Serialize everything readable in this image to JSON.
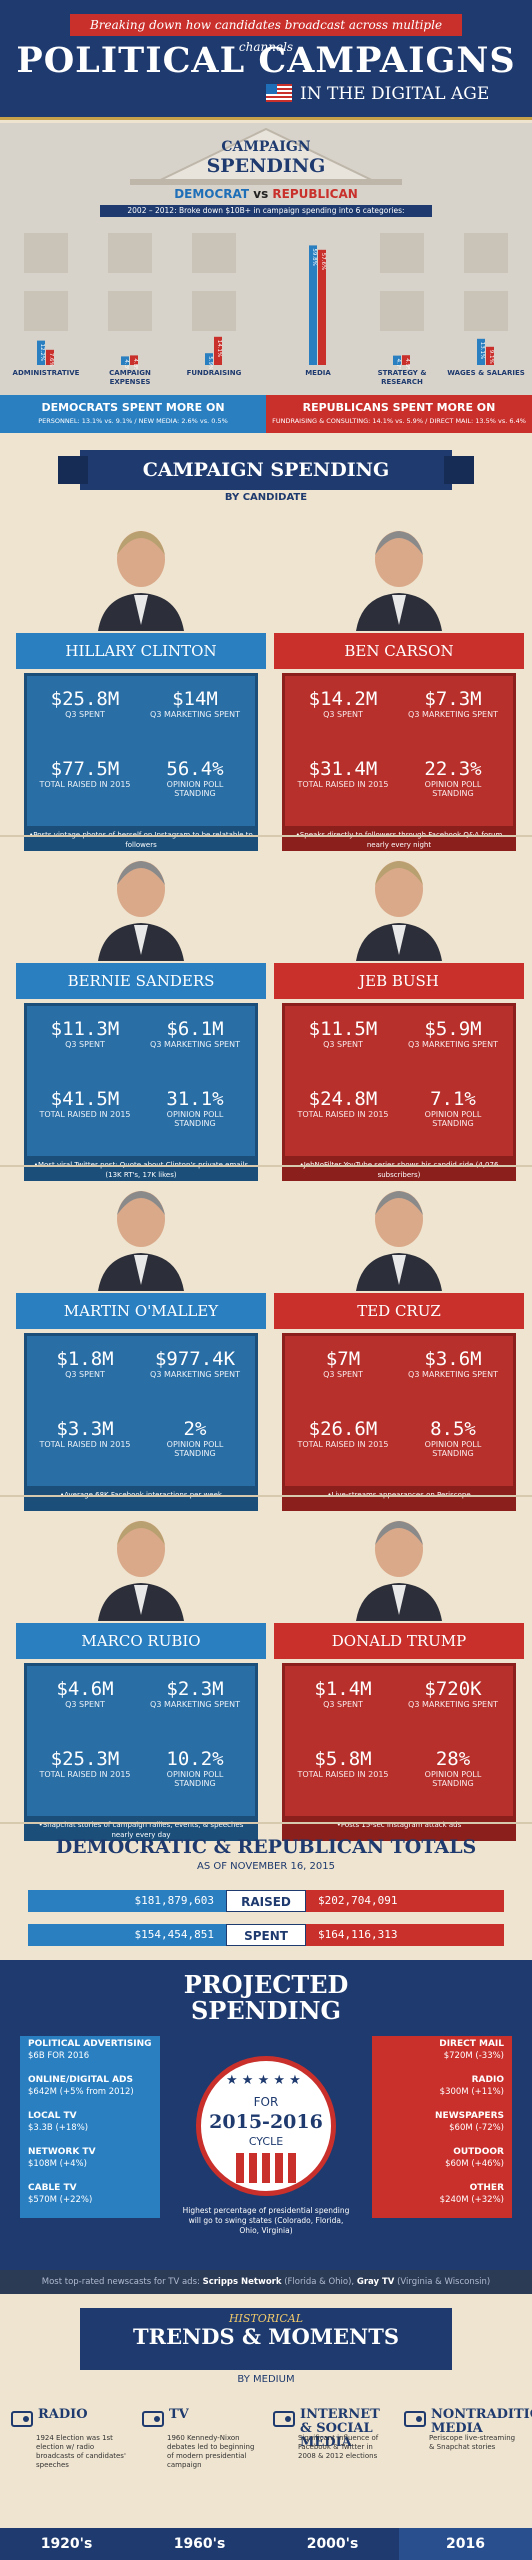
{
  "header": {
    "ribbon": "Breaking down how candidates broadcast across multiple channels",
    "title": "POLITICAL CAMPAIGNS",
    "subtitle": "IN THE DIGITAL AGE"
  },
  "campaign_spending": {
    "title_line1": "CAMPAIGN",
    "title_line2": "SPENDING",
    "democrat": "DEMOCRAT",
    "vs": "vs",
    "republican": "REPUBLICAN",
    "note": "2002 – 2012: Broke down $10B+ in campaign spending into 6 categories:",
    "chart_data": {
      "type": "bar",
      "categories": [
        "ADMINISTRATIVE",
        "CAMPAIGN EXPENSES",
        "FUNDRAISING",
        "MEDIA",
        "STRATEGY & RESEARCH",
        "WAGES & SALARIES"
      ],
      "series": [
        {
          "name": "DEMOCRAT",
          "values": [
            12.2,
            4.3,
            5.9,
            59.8,
            4.7,
            13.1
          ]
        },
        {
          "name": "REPUBLICAN",
          "values": [
            7.6,
            4.8,
            14.1,
            57.6,
            4.9,
            9.1
          ]
        }
      ],
      "labels_dem": [
        "12.2%",
        "4.3%",
        "5.9%",
        "59.8%",
        "4.7%",
        "13.1%"
      ],
      "labels_rep": [
        "7.6%",
        "4.8%",
        "14.1%",
        "57.6%",
        "4.9%",
        "9.1%"
      ]
    }
  },
  "spent_more": {
    "dem_head": "DEMOCRATS SPENT MORE ON",
    "dem_sub": "PERSONNEL: 13.1% vs. 9.1% / NEW MEDIA: 2.6% vs. 0.5%",
    "rep_head": "REPUBLICANS SPENT MORE ON",
    "rep_sub": "FUNDRAISING & CONSULTING: 14.1% vs. 5.9% / DIRECT MAIL: 13.5% vs. 6.4%"
  },
  "by_candidate": {
    "title": "CAMPAIGN SPENDING",
    "subtitle": "BY CANDIDATE"
  },
  "candidates": [
    {
      "name": "HILLARY CLINTON",
      "q3_spent": "$25.8M",
      "marketing": "$14M",
      "raised": "$77.5M",
      "poll": "56.4%",
      "note": "•Posts vintage photos of herself on Instagram to be relatable to followers"
    },
    {
      "name": "BEN CARSON",
      "q3_spent": "$14.2M",
      "marketing": "$7.3M",
      "raised": "$31.4M",
      "poll": "22.3%",
      "note": "•Speaks directly to followers through Facebook Q&A forum nearly every night"
    },
    {
      "name": "BERNIE SANDERS",
      "q3_spent": "$11.3M",
      "marketing": "$6.1M",
      "raised": "$41.5M",
      "poll": "31.1%",
      "note": "•Most viral Twitter post: Quote about Clinton's private emails (13K RT's, 17K likes)"
    },
    {
      "name": "JEB BUSH",
      "q3_spent": "$11.5M",
      "marketing": "$5.9M",
      "raised": "$24.8M",
      "poll": "7.1%",
      "note": "•JebNoFilter YouTube series shows his candid side (4,076 subscribers)"
    },
    {
      "name": "MARTIN O'MALLEY",
      "q3_spent": "$1.8M",
      "marketing": "$977.4K",
      "raised": "$3.3M",
      "poll": "2%",
      "note": "•Average 68K Facebook interactions per week"
    },
    {
      "name": "TED CRUZ",
      "q3_spent": "$7M",
      "marketing": "$3.6M",
      "raised": "$26.6M",
      "poll": "8.5%",
      "note": "•Live-streams appearances on Periscope"
    },
    {
      "name": "MARCO RUBIO",
      "q3_spent": "$4.6M",
      "marketing": "$2.3M",
      "raised": "$25.3M",
      "poll": "10.2%",
      "note": "•Snapchat stories of campaign rallies, events, & speeches nearly every day"
    },
    {
      "name": "DONALD TRUMP",
      "q3_spent": "$1.4M",
      "marketing": "$720K",
      "raised": "$5.8M",
      "poll": "28%",
      "note": "•Posts 15-sec Instagram attack ads"
    }
  ],
  "stat_labels": {
    "q3": "Q3 SPENT",
    "marketing": "Q3 MARKETING SPENT",
    "raised": "TOTAL RAISED IN 2015",
    "poll": "OPINION POLL STANDING"
  },
  "totals": {
    "title": "DEMOCRATIC & REPUBLICAN TOTALS",
    "subtitle": "AS OF NOVEMBER 16, 2015",
    "raised_label": "RAISED",
    "raised_dem": "$181,879,603",
    "raised_rep": "$202,704,091",
    "spent_label": "SPENT",
    "spent_dem": "$154,454,851",
    "spent_rep": "$164,116,313"
  },
  "projected": {
    "title_line1": "PROJECTED",
    "title_line2": "SPENDING",
    "for": "FOR",
    "years": "2015-2016",
    "cycle": "CYCLE",
    "note": "Highest percentage of presidential spending will go to swing states (Colorado, Florida, Ohio, Virginia)",
    "left": [
      {
        "label": "POLITICAL ADVERTISING",
        "value": "$6B FOR 2016"
      },
      {
        "label": "ONLINE/DIGITAL ADS",
        "value": "$642M (+5% from 2012)"
      },
      {
        "label": "LOCAL TV",
        "value": "$3.3B (+18%)"
      },
      {
        "label": "NETWORK TV",
        "value": "$108M (+4%)"
      },
      {
        "label": "CABLE TV",
        "value": "$570M (+22%)"
      }
    ],
    "right": [
      {
        "label": "DIRECT MAIL",
        "value": "$720M (-33%)"
      },
      {
        "label": "RADIO",
        "value": "$300M (+11%)"
      },
      {
        "label": "NEWSPAPERS",
        "value": "$60M (-72%)"
      },
      {
        "label": "OUTDOOR",
        "value": "$60M (+46%)"
      },
      {
        "label": "OTHER",
        "value": "$240M (+32%)"
      }
    ]
  },
  "top_news": {
    "prefix": "Most top-rated newscasts for TV ads:",
    "n1": "Scripps Network",
    "n1_note": "(Florida & Ohio),",
    "n2": "Gray TV",
    "n2_note": "(Virginia & Wisconsin)"
  },
  "historical": {
    "small": "HISTORICAL",
    "title": "TRENDS & MOMENTS",
    "subtitle": "BY MEDIUM",
    "eras": [
      {
        "name": "RADIO",
        "desc": "1924 Election was 1st election w/ radio broadcasts of candidates' speeches"
      },
      {
        "name": "TV",
        "desc": "1960 Kennedy-Nixon debates led to beginning of modern presidential campaign"
      },
      {
        "name": "INTERNET & SOCIAL MEDIA",
        "desc": "Significant influence of Facebook & Twitter in 2008 & 2012 elections"
      },
      {
        "name": "NONTRADITIONAL MEDIA",
        "desc": "Periscope live-streaming & Snapchat stories"
      }
    ],
    "years": [
      "1920's",
      "1960's",
      "2000's",
      "2016"
    ]
  },
  "colors": {
    "navy": "#1e3a6e",
    "blue": "#2a7fc1",
    "red": "#c9302c",
    "cream": "#efe4cf"
  }
}
